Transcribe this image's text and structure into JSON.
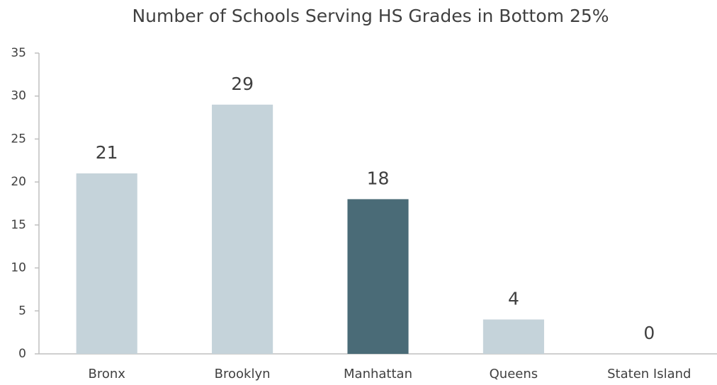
{
  "chart_data": {
    "type": "bar",
    "title": "Number of Schools Serving HS Grades in Bottom 25%",
    "categories": [
      "Bronx",
      "Brooklyn",
      "Manhattan",
      "Queens",
      "Staten Island"
    ],
    "values": [
      21,
      29,
      18,
      4,
      0
    ],
    "colors": [
      "#c5d3da",
      "#c5d3da",
      "#4a6b77",
      "#c5d3da",
      "#c5d3da"
    ],
    "ylim": [
      0,
      35
    ],
    "yticks": [
      0,
      5,
      10,
      15,
      20,
      25,
      30,
      35
    ],
    "grid": false
  }
}
